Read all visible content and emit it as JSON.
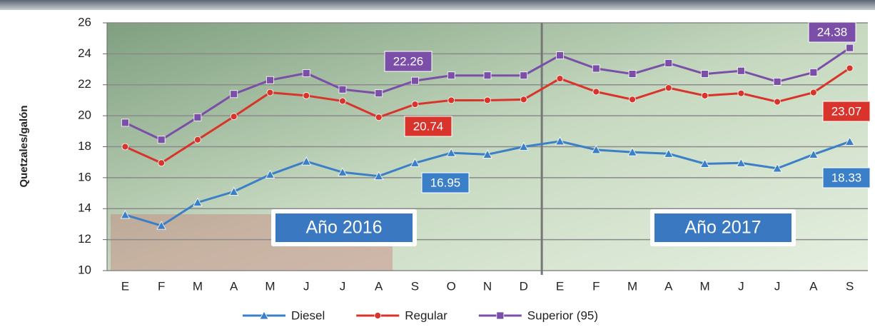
{
  "chart_data": {
    "type": "line",
    "y_label": "Quetzales/galón",
    "categories": [
      "E",
      "F",
      "M",
      "A",
      "M",
      "J",
      "J",
      "A",
      "S",
      "O",
      "N",
      "D",
      "E",
      "F",
      "M",
      "A",
      "M",
      "J",
      "J",
      "A",
      "S"
    ],
    "series": [
      {
        "name": "Diesel",
        "color": "#3a7fc8",
        "marker": "triangle",
        "values": [
          13.6,
          12.9,
          14.4,
          15.1,
          16.2,
          17.05,
          16.35,
          16.1,
          16.95,
          17.6,
          17.5,
          18.0,
          18.35,
          17.8,
          17.65,
          17.55,
          16.9,
          16.95,
          16.6,
          17.5,
          18.33
        ]
      },
      {
        "name": "Regular",
        "color": "#d9342b",
        "marker": "circle",
        "values": [
          18.0,
          16.95,
          18.45,
          19.95,
          21.5,
          21.3,
          20.95,
          19.9,
          20.74,
          21.0,
          21.0,
          21.05,
          22.4,
          21.55,
          21.05,
          21.8,
          21.3,
          21.45,
          20.9,
          21.5,
          23.07
        ]
      },
      {
        "name": "Superior (95)",
        "color": "#7b4fa8",
        "marker": "square",
        "values": [
          19.55,
          18.45,
          19.9,
          21.4,
          22.3,
          22.75,
          21.7,
          21.45,
          22.26,
          22.6,
          22.6,
          22.6,
          23.9,
          23.05,
          22.7,
          23.4,
          22.7,
          22.9,
          22.2,
          22.8,
          24.38
        ]
      }
    ],
    "annotations": [
      "Año 2016",
      "Año 2017"
    ],
    "ylim": [
      10,
      26
    ],
    "yticks": [
      10,
      12,
      14,
      16,
      18,
      20,
      22,
      24,
      26
    ],
    "grid": true
  }
}
